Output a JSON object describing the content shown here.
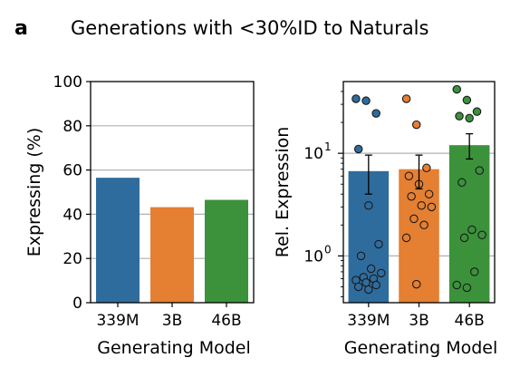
{
  "figure": {
    "panel_label": "a",
    "title": "Generations with <30%ID to Naturals"
  },
  "chart_data": [
    {
      "type": "bar",
      "categories": [
        "339M",
        "3B",
        "46B"
      ],
      "values": [
        56.5,
        43.2,
        46.5
      ],
      "colors": [
        "#2f6c9e",
        "#e57f32",
        "#3b923b"
      ],
      "xlabel": "Generating Model",
      "ylabel": "Expressing (%)",
      "ylim": [
        0,
        100
      ],
      "yticks": [
        0,
        20,
        40,
        60,
        80,
        100
      ],
      "grid": "horizontal"
    },
    {
      "type": "bar",
      "yscale": "log",
      "categories": [
        "339M",
        "3B",
        "46B"
      ],
      "values": [
        6.7,
        7.0,
        12.0
      ],
      "error_bars": [
        {
          "low": 4.0,
          "high": 9.6
        },
        {
          "low": 4.5,
          "high": 9.6
        },
        {
          "low": 8.8,
          "high": 15.5
        }
      ],
      "colors": [
        "#2f6c9e",
        "#e57f32",
        "#3b923b"
      ],
      "points": [
        [
          34.0,
          32.5,
          24.5,
          11.0,
          3.1,
          1.3,
          1.0,
          0.75,
          0.68,
          0.62,
          0.6,
          0.58,
          0.55,
          0.52,
          0.5,
          0.47
        ],
        [
          34.0,
          19.0,
          7.2,
          6.0,
          5.0,
          4.0,
          3.8,
          3.1,
          3.0,
          2.3,
          2.0,
          1.5,
          0.53
        ],
        [
          42.0,
          33.0,
          25.5,
          23.0,
          22.0,
          6.8,
          5.2,
          1.8,
          1.6,
          1.5,
          0.7,
          0.52,
          0.49
        ]
      ],
      "xlabel": "Generating Model",
      "ylabel": "Rel. Expression",
      "ylim": [
        0.35,
        50
      ],
      "ytick_labels": [
        {
          "base": "10",
          "exp": "0",
          "value": 1
        },
        {
          "base": "10",
          "exp": "1",
          "value": 10
        }
      ],
      "grid": "horizontal"
    }
  ]
}
